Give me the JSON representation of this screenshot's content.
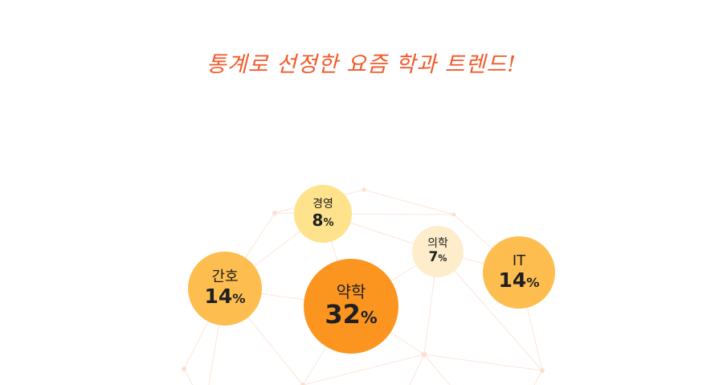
{
  "title": "통계로 선정한 요즘 학과 트렌드!",
  "colors": {
    "title": "#f25a2b",
    "network": "#fbe3d6"
  },
  "bubbles": [
    {
      "label": "경영",
      "value": "8",
      "unit": "%",
      "color": "#fee28c"
    },
    {
      "label": "간호",
      "value": "14",
      "unit": "%",
      "color": "#fdbd4f"
    },
    {
      "label": "약학",
      "value": "32",
      "unit": "%",
      "color": "#fb9520"
    },
    {
      "label": "의학",
      "value": "7",
      "unit": "%",
      "color": "#feedcb"
    },
    {
      "label": "IT",
      "value": "14",
      "unit": "%",
      "color": "#fdbd4f"
    }
  ]
}
